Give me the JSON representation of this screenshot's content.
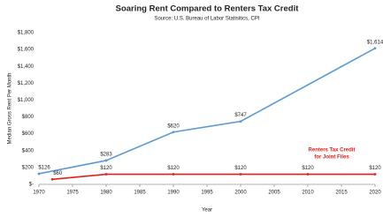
{
  "chart_data": {
    "type": "line",
    "title": "Soaring Rent Compared to Renters Tax Credit",
    "subtitle": "Source: U.S. Bureau of Labor Statisitics, CPI",
    "y_label": "Median Gross Rent Per Month",
    "x_label": "Year",
    "annotation_lines": [
      "Renters Tax Credit",
      "for Joint Files"
    ],
    "xlim": [
      1970,
      2020
    ],
    "xticks": [
      1970,
      1975,
      1980,
      1985,
      1990,
      1995,
      2000,
      2005,
      2010,
      2015,
      2020
    ],
    "ylim": [
      0,
      1800
    ],
    "yticks": [
      {
        "value": 0,
        "label": "$-"
      },
      {
        "value": 200,
        "label": "$200"
      },
      {
        "value": 400,
        "label": "$400"
      },
      {
        "value": 600,
        "label": "$600"
      },
      {
        "value": 800,
        "label": "$800"
      },
      {
        "value": 1000,
        "label": "$1,000"
      },
      {
        "value": 1200,
        "label": "$1,200"
      },
      {
        "value": 1400,
        "label": "$1,400"
      },
      {
        "value": 1600,
        "label": "$1,600"
      },
      {
        "value": 1800,
        "label": "$1,800"
      }
    ],
    "grid": false,
    "series": [
      {
        "color": "#5b9bd5",
        "x": [
          1970,
          1980,
          1990,
          2000,
          2020
        ],
        "values": [
          126,
          283,
          620,
          747,
          1614
        ],
        "value_labels": [
          "$126",
          "$283",
          "$620",
          "$747",
          "$1,614"
        ]
      },
      {
        "color": "#e0201c",
        "x": [
          1972,
          1980,
          1990,
          2000,
          2010,
          2020
        ],
        "values": [
          60,
          120,
          120,
          120,
          120,
          120
        ],
        "value_labels": [
          "$60",
          "$120",
          "$120",
          "$120",
          "$120",
          "$120"
        ]
      }
    ]
  }
}
